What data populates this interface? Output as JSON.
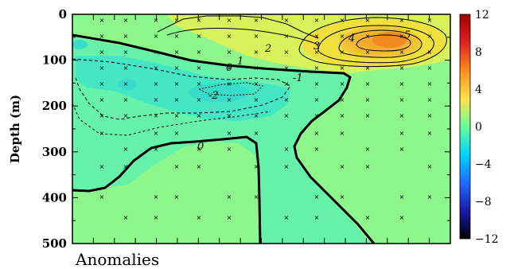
{
  "chart_data": {
    "type": "heatmap",
    "caption": "Anomalies",
    "ylabel": "Depth (m)",
    "xlabel": "",
    "ylim": [
      0,
      500
    ],
    "y_inverted": true,
    "y_ticks": [
      "0",
      "100",
      "200",
      "300",
      "400",
      "500"
    ],
    "y_tick_values": [
      0,
      100,
      200,
      300,
      400,
      500
    ],
    "colorbar": {
      "range": [
        -12,
        12
      ],
      "ticks": [
        "12",
        "8",
        "4",
        "0",
        "−4",
        "−8",
        "−12"
      ],
      "tick_values": [
        12,
        8,
        4,
        0,
        -4,
        -8,
        -12
      ],
      "colors": [
        "#000000",
        "#1a1aa8",
        "#1f6bff",
        "#00d5ff",
        "#66ff99",
        "#ffe24a",
        "#ff8c1a",
        "#e02020",
        "#a00000"
      ]
    },
    "contour_labels": [
      {
        "text": "1",
        "approx_value": 1
      },
      {
        "text": "0",
        "approx_value": 0
      },
      {
        "text": "-1",
        "approx_value": -1
      },
      {
        "text": "-2",
        "approx_value": -2
      },
      {
        "text": "0",
        "approx_value": 0
      },
      {
        "text": "2",
        "approx_value": 2
      },
      {
        "text": "3",
        "approx_value": 3
      },
      {
        "text": "4",
        "approx_value": 4
      },
      {
        "text": "5",
        "approx_value": 5
      }
    ],
    "regions": [
      {
        "name": "background",
        "approx_value": 0.5,
        "color": "#8ef78c"
      },
      {
        "name": "negative-lens",
        "approx_value": -1,
        "color": "#68f5a8"
      },
      {
        "name": "minimum-core",
        "approx_value": -2,
        "color": "#3ee3c6"
      },
      {
        "name": "warm-cell-outer",
        "approx_value": 2,
        "color": "#d7f25b"
      },
      {
        "name": "warm-cell-mid",
        "approx_value": 3,
        "color": "#f1dc3b"
      },
      {
        "name": "warm-cell-core",
        "approx_value": 5,
        "color": "#f3aa2c"
      }
    ]
  }
}
